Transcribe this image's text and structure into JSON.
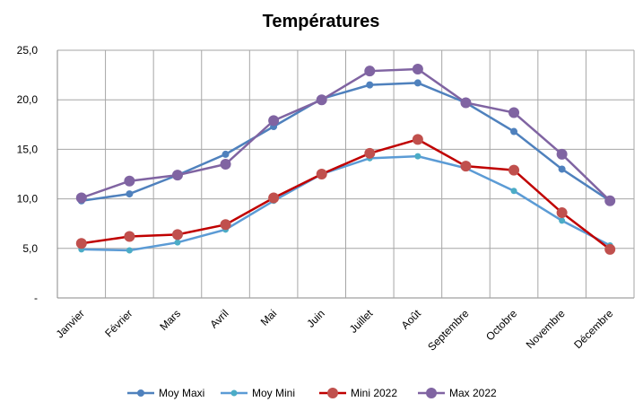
{
  "chart_data": {
    "type": "line",
    "title": "Températures",
    "xlabel": "",
    "ylabel": "",
    "ylim": [
      0,
      25
    ],
    "yticks": [
      "-",
      "5,0",
      "10,0",
      "15,0",
      "20,0",
      "25,0"
    ],
    "grid": true,
    "legend_position": "bottom",
    "categories": [
      "Janvier",
      "Février",
      "Mars",
      "Avril",
      "Mai",
      "Juin",
      "Juillet",
      "Août",
      "Septembre",
      "Octobre",
      "Novembre",
      "Décembre"
    ],
    "series": [
      {
        "name": "Moy Maxi",
        "color": "#4f81bd",
        "marker_color": "#4f81bd",
        "values": [
          9.8,
          10.5,
          12.4,
          14.5,
          17.3,
          20.1,
          21.5,
          21.7,
          19.7,
          16.8,
          13.0,
          9.8
        ]
      },
      {
        "name": "Moy Mini",
        "color": "#5b9bd5",
        "marker_color": "#4bacc6",
        "values": [
          4.9,
          4.8,
          5.6,
          6.9,
          9.8,
          12.5,
          14.1,
          14.3,
          13.1,
          10.8,
          7.8,
          5.3
        ]
      },
      {
        "name": "Mini 2022",
        "color": "#c00000",
        "marker_color": "#c0504d",
        "values": [
          5.5,
          6.2,
          6.4,
          7.4,
          10.1,
          12.5,
          14.6,
          16.0,
          13.3,
          12.9,
          8.6,
          4.9
        ]
      },
      {
        "name": "Max 2022",
        "color": "#8064a2",
        "marker_color": "#8064a2",
        "values": [
          10.1,
          11.8,
          12.4,
          13.5,
          17.9,
          20.0,
          22.9,
          23.1,
          19.7,
          18.7,
          14.5,
          9.8
        ]
      }
    ]
  }
}
